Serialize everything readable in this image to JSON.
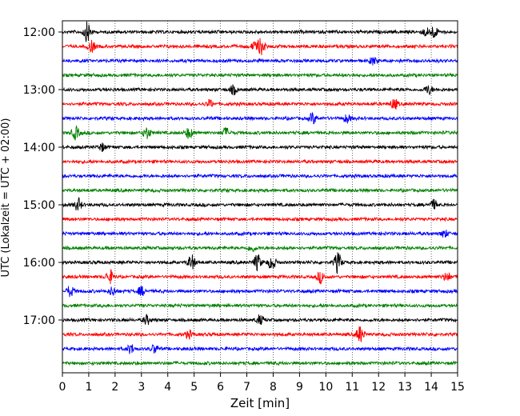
{
  "chart_data": {
    "type": "line",
    "title": "",
    "xlabel": "Zeit  [min]",
    "ylabel": "UTC (Lokalzeit = UTC + 02:00)",
    "xlim": [
      0,
      15
    ],
    "x_ticks": [
      "0",
      "1",
      "2",
      "3",
      "4",
      "5",
      "6",
      "7",
      "8",
      "9",
      "10",
      "11",
      "12",
      "13",
      "14",
      "15"
    ],
    "y_ticks": [
      "12:00",
      "13:00",
      "14:00",
      "15:00",
      "16:00",
      "17:00"
    ],
    "trace_interval_minutes": 15,
    "grid": "vertical dotted",
    "colors": [
      "#000000",
      "#ff0000",
      "#0000ff",
      "#008000"
    ],
    "series": [
      {
        "time": "12:00",
        "color": "#000000",
        "events": [
          [
            0.95,
            2.2
          ],
          [
            14.1,
            1.3
          ],
          [
            13.8,
            0.9
          ]
        ]
      },
      {
        "time": "12:15",
        "color": "#ff0000",
        "events": [
          [
            1.1,
            1.2
          ],
          [
            7.55,
            1.8
          ],
          [
            7.3,
            0.9
          ]
        ]
      },
      {
        "time": "12:30",
        "color": "#0000ff",
        "events": [
          [
            11.8,
            0.8
          ]
        ]
      },
      {
        "time": "12:45",
        "color": "#008000",
        "events": []
      },
      {
        "time": "13:00",
        "color": "#000000",
        "events": [
          [
            6.5,
            1.0
          ],
          [
            13.9,
            1.0
          ]
        ]
      },
      {
        "time": "13:15",
        "color": "#ff0000",
        "events": [
          [
            12.6,
            1.2
          ],
          [
            5.6,
            0.8
          ]
        ]
      },
      {
        "time": "13:30",
        "color": "#0000ff",
        "events": [
          [
            9.5,
            1.2
          ],
          [
            10.8,
            0.9
          ]
        ]
      },
      {
        "time": "13:45",
        "color": "#008000",
        "events": [
          [
            0.5,
            1.4
          ],
          [
            3.2,
            1.3
          ],
          [
            4.8,
            1.2
          ],
          [
            6.2,
            1.0
          ]
        ]
      },
      {
        "time": "14:00",
        "color": "#000000",
        "events": [
          [
            1.5,
            0.8
          ]
        ]
      },
      {
        "time": "14:15",
        "color": "#ff0000",
        "events": []
      },
      {
        "time": "14:30",
        "color": "#0000ff",
        "events": []
      },
      {
        "time": "14:45",
        "color": "#008000",
        "events": []
      },
      {
        "time": "15:00",
        "color": "#000000",
        "events": [
          [
            0.6,
            1.4
          ],
          [
            14.1,
            1.0
          ]
        ]
      },
      {
        "time": "15:15",
        "color": "#ff0000",
        "events": []
      },
      {
        "time": "15:30",
        "color": "#0000ff",
        "events": [
          [
            14.5,
            0.8
          ]
        ]
      },
      {
        "time": "15:45",
        "color": "#008000",
        "events": [
          [
            7.2,
            0.7
          ]
        ]
      },
      {
        "time": "16:00",
        "color": "#000000",
        "events": [
          [
            4.9,
            1.6
          ],
          [
            7.4,
            1.8
          ],
          [
            7.95,
            1.5
          ],
          [
            10.45,
            2.2
          ]
        ]
      },
      {
        "time": "16:15",
        "color": "#ff0000",
        "events": [
          [
            1.8,
            1.4
          ],
          [
            9.8,
            1.2
          ],
          [
            14.6,
            1.0
          ]
        ]
      },
      {
        "time": "16:30",
        "color": "#0000ff",
        "events": [
          [
            0.3,
            1.2
          ],
          [
            1.9,
            1.0
          ],
          [
            3.0,
            1.0
          ]
        ]
      },
      {
        "time": "16:45",
        "color": "#008000",
        "events": []
      },
      {
        "time": "17:00",
        "color": "#000000",
        "events": [
          [
            3.2,
            1.0
          ],
          [
            7.5,
            1.0
          ]
        ]
      },
      {
        "time": "17:15",
        "color": "#ff0000",
        "events": [
          [
            4.8,
            0.9
          ],
          [
            11.3,
            1.8
          ]
        ]
      },
      {
        "time": "17:30",
        "color": "#0000ff",
        "events": [
          [
            2.6,
            1.0
          ],
          [
            3.5,
            0.9
          ]
        ]
      },
      {
        "time": "17:45",
        "color": "#008000",
        "events": []
      }
    ]
  }
}
